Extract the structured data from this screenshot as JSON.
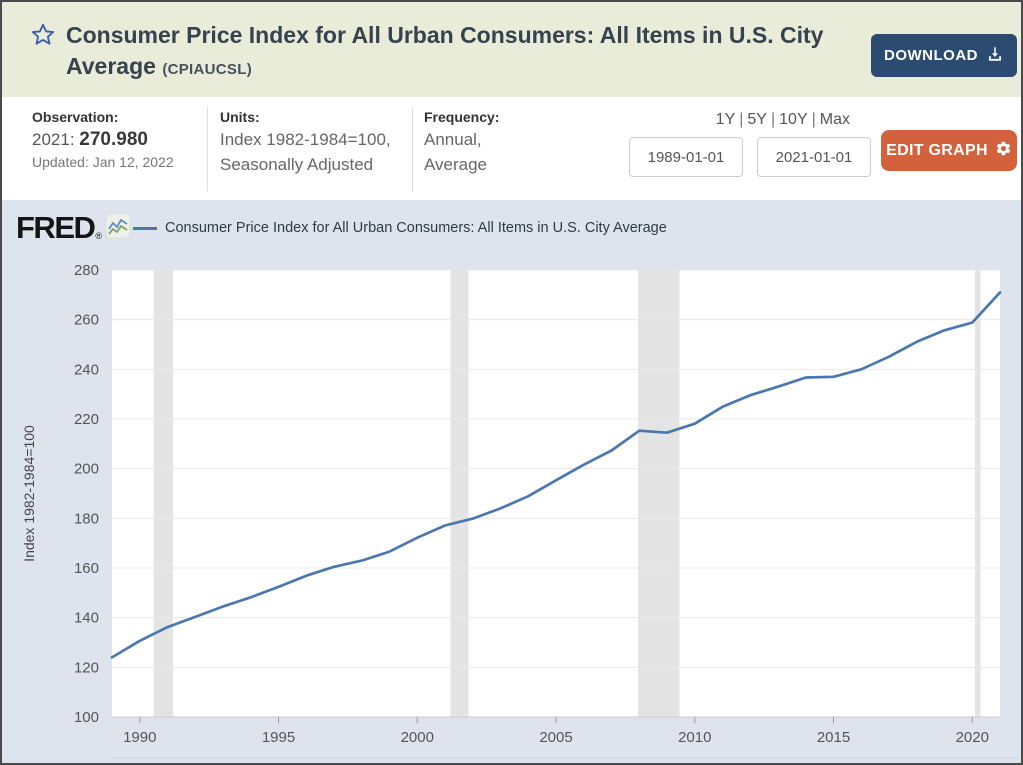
{
  "header": {
    "title": "Consumer Price Index for All Urban Consumers: All Items in U.S. City Average",
    "series_id": "(CPIAUCSL)",
    "download_label": "DOWNLOAD"
  },
  "info_bar": {
    "observation": {
      "label": "Observation:",
      "period": "2021:",
      "value": "270.980",
      "updated": "Updated: Jan 12, 2022"
    },
    "units": {
      "label": "Units:",
      "line1": "Index 1982-1984=100,",
      "line2": "Seasonally Adjusted"
    },
    "frequency": {
      "label": "Frequency:",
      "line1": "Annual,",
      "line2": "Average"
    },
    "ranges": [
      "1Y",
      "5Y",
      "10Y",
      "Max"
    ],
    "range_separator": "|",
    "start_date": "1989-01-01",
    "end_date": "2021-01-01",
    "edit_graph_label": "EDIT GRAPH"
  },
  "chart": {
    "brand": "FRED",
    "brand_reg": "®",
    "legend_label": "Consumer Price Index for All Urban Consumers: All Items in U.S. City Average",
    "colors": {
      "line": "#4a78ae",
      "plot_bg": "#ffffff",
      "section_bg": "#dde4ee",
      "grid": "#e8e8e8",
      "recession_band": "#e4e4e4",
      "axis_line": "#cccccc",
      "tick_mark": "#999999",
      "tick_label": "#555555",
      "axis_title": "#444444"
    }
  },
  "chart_data": {
    "type": "line",
    "title": "Consumer Price Index for All Urban Consumers: All Items in U.S. City Average",
    "xlabel": "",
    "ylabel": "Index 1982-1984=100",
    "legend_position": "top",
    "grid": true,
    "xlim": [
      1989,
      2021
    ],
    "ylim": [
      100,
      280
    ],
    "x_ticks": [
      1990,
      1995,
      2000,
      2005,
      2010,
      2015,
      2020
    ],
    "y_ticks": [
      100,
      120,
      140,
      160,
      180,
      200,
      220,
      240,
      260,
      280
    ],
    "x": [
      1989,
      1990,
      1991,
      1992,
      1993,
      1994,
      1995,
      1996,
      1997,
      1998,
      1999,
      2000,
      2001,
      2002,
      2003,
      2004,
      2005,
      2006,
      2007,
      2008,
      2009,
      2010,
      2011,
      2012,
      2013,
      2014,
      2015,
      2016,
      2017,
      2018,
      2019,
      2020,
      2021
    ],
    "values": [
      124.0,
      130.7,
      136.2,
      140.3,
      144.5,
      148.2,
      152.4,
      156.9,
      160.5,
      163.0,
      166.6,
      172.2,
      177.1,
      179.9,
      184.0,
      188.9,
      195.3,
      201.6,
      207.3,
      215.3,
      214.5,
      218.1,
      224.9,
      229.6,
      233.0,
      236.7,
      237.0,
      240.0,
      245.1,
      251.1,
      255.7,
      258.8,
      270.98
    ],
    "recession_bands": [
      [
        1990.5,
        1991.2
      ],
      [
        2001.2,
        2001.85
      ],
      [
        2007.95,
        2009.45
      ],
      [
        2020.1,
        2020.3
      ]
    ]
  }
}
